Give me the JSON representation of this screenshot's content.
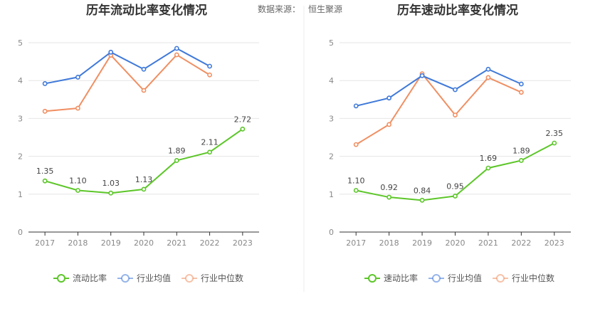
{
  "source": {
    "label": "数据来源：",
    "value": "恒生聚源"
  },
  "colors": {
    "company": "#5cc628",
    "industry_avg": "#3f79d9",
    "industry_median": "#f08f62",
    "divider": "#eeeeee",
    "grid": "#e6e6e6",
    "axis": "#333333"
  },
  "chart_data": [
    {
      "type": "line",
      "title": "历年流动比率变化情况",
      "categories": [
        "2017",
        "2018",
        "2019",
        "2020",
        "2021",
        "2022",
        "2023"
      ],
      "ylim": [
        0,
        5
      ],
      "yticks": [
        "0",
        "1",
        "2",
        "3",
        "4",
        "5"
      ],
      "grid": true,
      "legend_position": "bottom",
      "series": [
        {
          "name": "流动比率",
          "values": [
            1.35,
            1.1,
            1.03,
            1.13,
            1.89,
            2.11,
            2.72
          ],
          "labels": [
            "1.35",
            "1.10",
            "1.03",
            "1.13",
            "1.89",
            "2.11",
            "2.72"
          ]
        },
        {
          "name": "行业均值",
          "values": [
            3.92,
            4.09,
            4.75,
            4.3,
            4.85,
            4.38,
            null
          ]
        },
        {
          "name": "行业中位数",
          "values": [
            3.19,
            3.27,
            4.67,
            3.74,
            4.68,
            4.15,
            null
          ]
        }
      ]
    },
    {
      "type": "line",
      "title": "历年速动比率变化情况",
      "categories": [
        "2017",
        "2018",
        "2019",
        "2020",
        "2021",
        "2022",
        "2023"
      ],
      "ylim": [
        0,
        5
      ],
      "yticks": [
        "0",
        "1",
        "2",
        "3",
        "4",
        "5"
      ],
      "grid": true,
      "legend_position": "bottom",
      "series": [
        {
          "name": "速动比率",
          "values": [
            1.1,
            0.92,
            0.84,
            0.95,
            1.69,
            1.89,
            2.35
          ],
          "labels": [
            "1.10",
            "0.92",
            "0.84",
            "0.95",
            "1.69",
            "1.89",
            "2.35"
          ]
        },
        {
          "name": "行业均值",
          "values": [
            3.33,
            3.54,
            4.13,
            3.76,
            4.3,
            3.91,
            null
          ]
        },
        {
          "name": "行业中位数",
          "values": [
            2.31,
            2.84,
            4.18,
            3.09,
            4.08,
            3.69,
            null
          ]
        }
      ]
    }
  ]
}
